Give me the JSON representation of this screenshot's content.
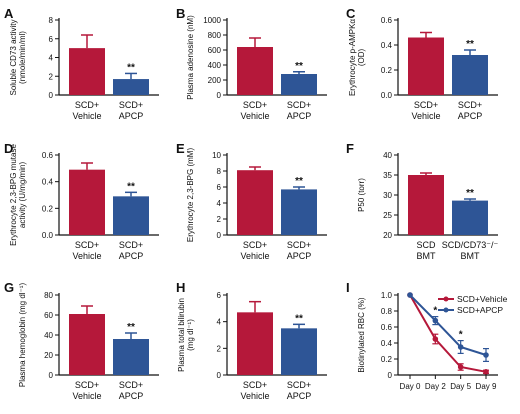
{
  "colors": {
    "red": "#b5183a",
    "blue": "#2e5596",
    "axis": "#111111"
  },
  "panels": [
    {
      "label": "A",
      "ylabel": [
        "Soluble CD73 activity",
        "(nmole/min/ml)"
      ]
    },
    {
      "label": "B",
      "ylabel": [
        "Plasma adenosine (nM)"
      ]
    },
    {
      "label": "C",
      "ylabel": [
        "Erythrocyte p-AMPKα",
        "(OD)"
      ]
    },
    {
      "label": "D",
      "ylabel": [
        "Erythrocyte 2,3-BPG mutase",
        "activity (U/mg/min)"
      ]
    },
    {
      "label": "E",
      "ylabel": [
        "Erythrocyte 2,3-BPG (mM)"
      ]
    },
    {
      "label": "F",
      "ylabel": [
        "P50 (torr)"
      ]
    },
    {
      "label": "G",
      "ylabel": [
        "Plasma hemoglobin (mg dl⁻¹)"
      ]
    },
    {
      "label": "H",
      "ylabel": [
        "Plasma total bilirubin",
        "(mg dl⁻¹)"
      ]
    },
    {
      "label": "I",
      "ylabel": [
        "Biotinylated RBC (%)"
      ]
    }
  ],
  "chart_data": [
    {
      "panel": "A",
      "type": "bar",
      "categories": [
        [
          "SCD+",
          "Vehicle"
        ],
        [
          "SCD+",
          "APCP"
        ]
      ],
      "values": [
        5.0,
        1.7
      ],
      "errors": [
        1.4,
        0.6
      ],
      "ylim": [
        0,
        8
      ],
      "yticks": [
        "0",
        "2",
        "4",
        "6",
        "8"
      ],
      "annotations": [
        "",
        "**"
      ]
    },
    {
      "panel": "B",
      "type": "bar",
      "categories": [
        [
          "SCD+",
          "Vehicle"
        ],
        [
          "SCD+",
          "APCP"
        ]
      ],
      "values": [
        640,
        280
      ],
      "errors": [
        120,
        30
      ],
      "ylim": [
        0,
        1000
      ],
      "yticks": [
        "0",
        "200",
        "400",
        "600",
        "800",
        "1000"
      ],
      "annotations": [
        "",
        "**"
      ]
    },
    {
      "panel": "C",
      "type": "bar",
      "categories": [
        [
          "SCD+",
          "Vehicle"
        ],
        [
          "SCD+",
          "APCP"
        ]
      ],
      "values": [
        0.46,
        0.32
      ],
      "errors": [
        0.04,
        0.04
      ],
      "ylim": [
        0,
        0.6
      ],
      "yticks": [
        "0.0",
        "0.2",
        "0.4",
        "0.6"
      ],
      "annotations": [
        "",
        "**"
      ]
    },
    {
      "panel": "D",
      "type": "bar",
      "categories": [
        [
          "SCD+",
          "Vehicle"
        ],
        [
          "SCD+",
          "APCP"
        ]
      ],
      "values": [
        0.49,
        0.29
      ],
      "errors": [
        0.05,
        0.03
      ],
      "ylim": [
        0,
        0.6
      ],
      "yticks": [
        "0.0",
        "0.2",
        "0.4",
        "0.6"
      ],
      "annotations": [
        "",
        "**"
      ]
    },
    {
      "panel": "E",
      "type": "bar",
      "categories": [
        [
          "SCD+",
          "Vehicle"
        ],
        [
          "SCD+",
          "APCP"
        ]
      ],
      "values": [
        8.1,
        5.7
      ],
      "errors": [
        0.4,
        0.3
      ],
      "ylim": [
        0,
        10
      ],
      "yticks": [
        "0",
        "2",
        "4",
        "6",
        "8",
        "10"
      ],
      "annotations": [
        "",
        "**"
      ]
    },
    {
      "panel": "F",
      "type": "bar",
      "categories": [
        [
          "SCD",
          "BMT"
        ],
        [
          "SCD/CD73⁻/⁻",
          "BMT"
        ]
      ],
      "values": [
        35.0,
        28.6
      ],
      "errors": [
        0.5,
        0.4
      ],
      "ylim": [
        20,
        40
      ],
      "yticks": [
        "20",
        "25",
        "30",
        "35",
        "40"
      ],
      "annotations": [
        "",
        "**"
      ]
    },
    {
      "panel": "G",
      "type": "bar",
      "categories": [
        [
          "SCD+",
          "Vehicle"
        ],
        [
          "SCD+",
          "APCP"
        ]
      ],
      "values": [
        61,
        36
      ],
      "errors": [
        8,
        6
      ],
      "ylim": [
        0,
        80
      ],
      "yticks": [
        "0",
        "20",
        "40",
        "60",
        "80"
      ],
      "annotations": [
        "",
        "**"
      ]
    },
    {
      "panel": "H",
      "type": "bar",
      "categories": [
        [
          "SCD+",
          "Vehicle"
        ],
        [
          "SCD+",
          "APCP"
        ]
      ],
      "values": [
        4.7,
        3.5
      ],
      "errors": [
        0.8,
        0.3
      ],
      "ylim": [
        0,
        6
      ],
      "yticks": [
        "0",
        "2",
        "4",
        "6"
      ],
      "annotations": [
        "",
        "**"
      ]
    },
    {
      "panel": "I",
      "type": "line",
      "categories": [
        "Day 0",
        "Day 2",
        "Day 5",
        "Day 9"
      ],
      "series": [
        {
          "name": "SCD+Vehicle",
          "values": [
            1.0,
            0.45,
            0.1,
            0.04
          ],
          "errors": [
            0.0,
            0.06,
            0.04,
            0.02
          ]
        },
        {
          "name": "SCD+APCP",
          "values": [
            1.0,
            0.68,
            0.35,
            0.25
          ],
          "errors": [
            0.0,
            0.05,
            0.08,
            0.08
          ]
        }
      ],
      "ylim": [
        0,
        1.0
      ],
      "yticks": [
        "0",
        "0.2",
        "0.4",
        "0.6",
        "0.8",
        "1.0"
      ],
      "annotations": [
        "*",
        "*"
      ],
      "legend": "top-right"
    }
  ]
}
